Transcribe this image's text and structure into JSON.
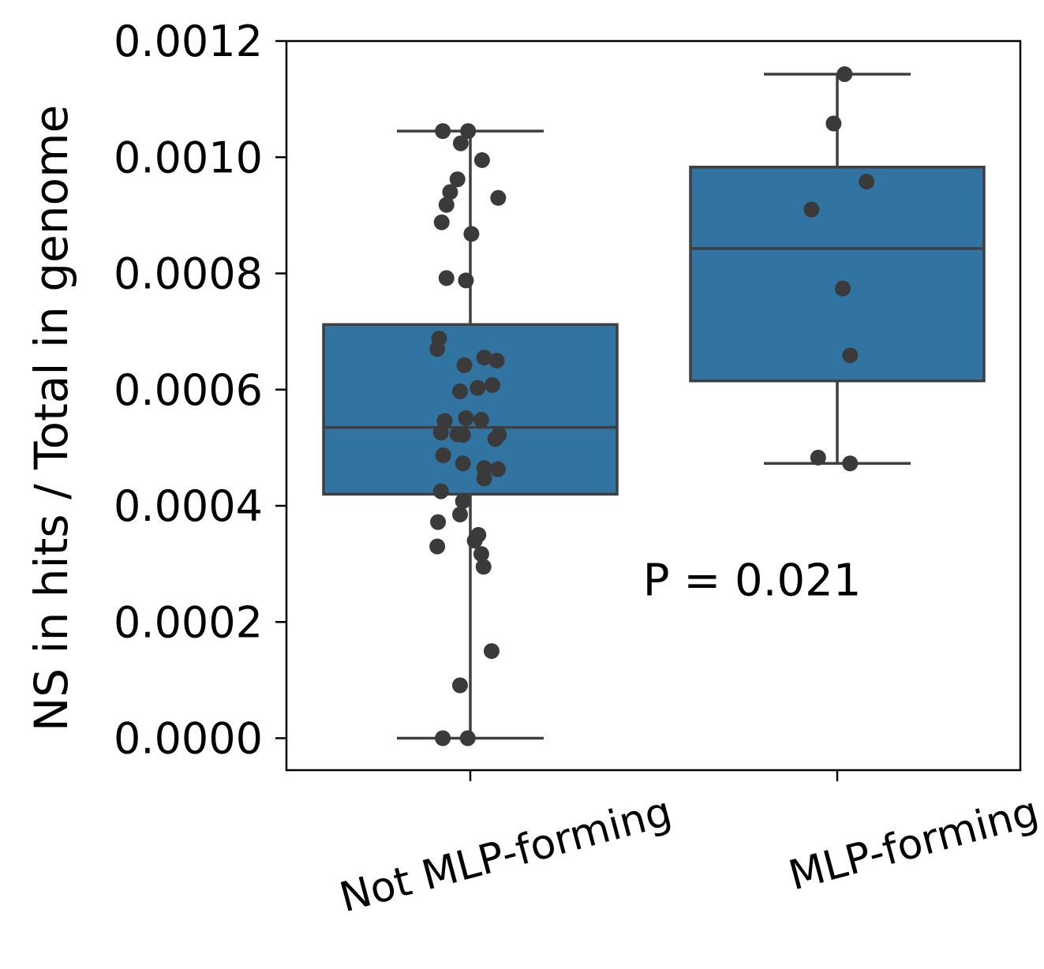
{
  "chart_data": {
    "type": "box",
    "ylabel": "NS in hits / Total in genome",
    "xlabel": "",
    "ylim": [
      -5.5e-05,
      0.0012
    ],
    "yticks": [
      "0.0000",
      "0.0002",
      "0.0004",
      "0.0006",
      "0.0008",
      "0.0010",
      "0.0012"
    ],
    "ytick_values": [
      0.0,
      0.0002,
      0.0004,
      0.0006,
      0.0008,
      0.001,
      0.0012
    ],
    "categories": [
      "Not MLP-forming",
      "MLP-forming"
    ],
    "box_color": "#3274a1",
    "edge_color": "#3f3f3f",
    "point_color": "#3a3a3a",
    "boxes": [
      {
        "whislo": 0.0,
        "q1": 0.00042,
        "med": 0.000535,
        "q3": 0.000712,
        "whishi": 0.001045
      },
      {
        "whislo": 0.000473,
        "q1": 0.000615,
        "med": 0.000843,
        "q3": 0.000983,
        "whishi": 0.001143
      }
    ],
    "points": [
      [
        {
          "x": -0.075,
          "y": 0.001045
        },
        {
          "x": -0.006,
          "y": 0.001045
        },
        {
          "x": -0.026,
          "y": 0.001024
        },
        {
          "x": 0.032,
          "y": 0.000995
        },
        {
          "x": -0.035,
          "y": 0.000962
        },
        {
          "x": -0.055,
          "y": 0.00094
        },
        {
          "x": 0.076,
          "y": 0.00093
        },
        {
          "x": -0.065,
          "y": 0.000918
        },
        {
          "x": -0.078,
          "y": 0.000888
        },
        {
          "x": 0.003,
          "y": 0.000868
        },
        {
          "x": -0.065,
          "y": 0.000792
        },
        {
          "x": -0.012,
          "y": 0.000788
        },
        {
          "x": -0.085,
          "y": 0.000688
        },
        {
          "x": -0.09,
          "y": 0.00067
        },
        {
          "x": 0.038,
          "y": 0.000655
        },
        {
          "x": 0.072,
          "y": 0.00065
        },
        {
          "x": -0.016,
          "y": 0.000642
        },
        {
          "x": 0.06,
          "y": 0.000608
        },
        {
          "x": 0.02,
          "y": 0.000603
        },
        {
          "x": -0.028,
          "y": 0.000597
        },
        {
          "x": -0.012,
          "y": 0.000551
        },
        {
          "x": 0.03,
          "y": 0.000548
        },
        {
          "x": -0.07,
          "y": 0.000546
        },
        {
          "x": -0.08,
          "y": 0.000526
        },
        {
          "x": -0.035,
          "y": 0.000523
        },
        {
          "x": -0.02,
          "y": 0.000522
        },
        {
          "x": 0.078,
          "y": 0.000522
        },
        {
          "x": 0.068,
          "y": 0.000515
        },
        {
          "x": -0.074,
          "y": 0.000487
        },
        {
          "x": -0.02,
          "y": 0.000473
        },
        {
          "x": 0.038,
          "y": 0.000465
        },
        {
          "x": 0.075,
          "y": 0.000463
        },
        {
          "x": 0.038,
          "y": 0.000447
        },
        {
          "x": -0.08,
          "y": 0.000425
        },
        {
          "x": -0.02,
          "y": 0.000408
        },
        {
          "x": -0.028,
          "y": 0.000385
        },
        {
          "x": -0.088,
          "y": 0.000372
        },
        {
          "x": 0.022,
          "y": 0.00035
        },
        {
          "x": 0.012,
          "y": 0.00034
        },
        {
          "x": -0.09,
          "y": 0.00033
        },
        {
          "x": 0.03,
          "y": 0.000317
        },
        {
          "x": 0.036,
          "y": 0.000295
        },
        {
          "x": 0.058,
          "y": 0.00015
        },
        {
          "x": -0.028,
          "y": 9.1e-05
        },
        {
          "x": -0.075,
          "y": 0.0
        },
        {
          "x": -0.007,
          "y": 0.0
        }
      ],
      [
        {
          "x": 0.02,
          "y": 0.001143
        },
        {
          "x": -0.01,
          "y": 0.001058
        },
        {
          "x": 0.08,
          "y": 0.000958
        },
        {
          "x": -0.07,
          "y": 0.00091
        },
        {
          "x": 0.015,
          "y": 0.000774
        },
        {
          "x": 0.035,
          "y": 0.000659
        },
        {
          "x": -0.052,
          "y": 0.000483
        },
        {
          "x": 0.035,
          "y": 0.000473
        }
      ]
    ],
    "annotations": [
      {
        "text": "P = 0.021",
        "x": 0.75,
        "y": 0.000273
      }
    ],
    "grid": false,
    "legend": "none"
  }
}
